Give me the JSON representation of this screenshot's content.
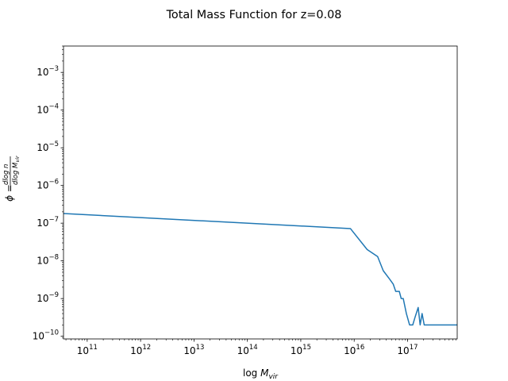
{
  "chart_data": {
    "type": "line",
    "title": "Total Mass Function for z=0.08",
    "xlabel": "log M_vir",
    "ylabel": "φ = dlog n / dlog M_vir",
    "xscale": "log",
    "yscale": "log",
    "xlim": [
      36000000000.0,
      8.5e+17
    ],
    "ylim": [
      8.5e-11,
      0.005
    ],
    "grid": false,
    "x_ticks": [
      {
        "value": 100000000000.0,
        "base": "10",
        "exp": "11"
      },
      {
        "value": 1000000000000.0,
        "base": "10",
        "exp": "12"
      },
      {
        "value": 10000000000000.0,
        "base": "10",
        "exp": "13"
      },
      {
        "value": 100000000000000.0,
        "base": "10",
        "exp": "14"
      },
      {
        "value": 1000000000000000.0,
        "base": "10",
        "exp": "15"
      },
      {
        "value": 1e+16,
        "base": "10",
        "exp": "16"
      },
      {
        "value": 1e+17,
        "base": "10",
        "exp": "17"
      }
    ],
    "y_ticks": [
      {
        "value": 1e-10,
        "base": "10",
        "exp": "−10"
      },
      {
        "value": 1e-09,
        "base": "10",
        "exp": "−9"
      },
      {
        "value": 1e-08,
        "base": "10",
        "exp": "−8"
      },
      {
        "value": 1e-07,
        "base": "10",
        "exp": "−7"
      },
      {
        "value": 1e-06,
        "base": "10",
        "exp": "−6"
      },
      {
        "value": 1e-05,
        "base": "10",
        "exp": "−5"
      },
      {
        "value": 0.0001,
        "base": "10",
        "exp": "−4"
      },
      {
        "value": 0.001,
        "base": "10",
        "exp": "−3"
      }
    ],
    "series": [
      {
        "color": "#1f77b4",
        "x": [
          36000000000.0,
          8500000000000000.0,
          1.75e+16,
          2.75e+16,
          3.5e+16,
          4.6e+16,
          5.4e+16,
          6e+16,
          7e+16,
          7.6e+16,
          8.3e+16,
          9.5e+16,
          1.09e+17,
          1.25e+17,
          1.38e+17,
          1.58e+17,
          1.72e+17,
          1.87e+17,
          2.05e+17,
          8.5e+17
        ],
        "y": [
          1.8e-07,
          7.2e-08,
          2e-08,
          1.3e-08,
          5.5e-09,
          3.3e-09,
          2.4e-09,
          1.55e-09,
          1.55e-09,
          1e-09,
          1e-09,
          4e-10,
          2e-10,
          2e-10,
          3.2e-10,
          5.8e-10,
          2e-10,
          4e-10,
          2e-10,
          2e-10
        ]
      }
    ]
  },
  "colors": {
    "line": "#1f77b4",
    "axes": "#000000",
    "background": "#ffffff"
  }
}
